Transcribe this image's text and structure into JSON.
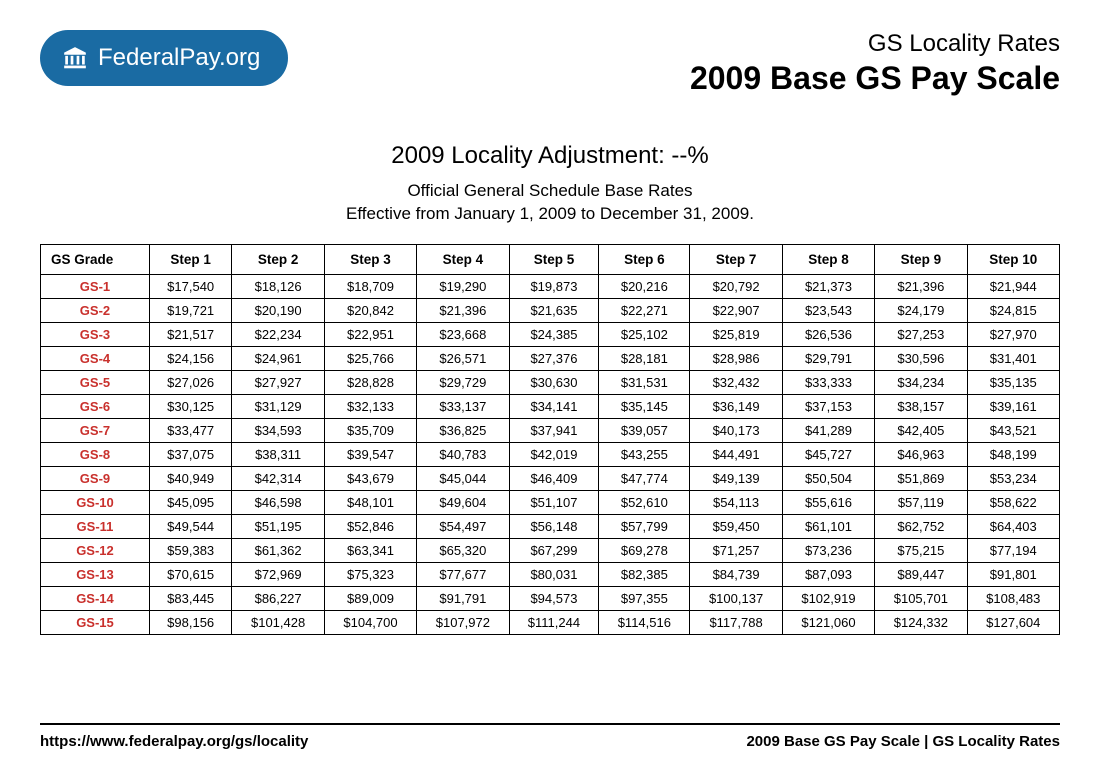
{
  "logo": {
    "text_bold": "Federal",
    "text_light": "Pay.org"
  },
  "header": {
    "line1": "GS Locality Rates",
    "line2": "2009 Base GS Pay Scale"
  },
  "subtitle": {
    "adjustment": "2009 Locality Adjustment: --%",
    "desc_line1": "Official General Schedule Base Rates",
    "desc_line2": "Effective from January 1, 2009 to December 31, 2009."
  },
  "table": {
    "columns": [
      "GS Grade",
      "Step 1",
      "Step 2",
      "Step 3",
      "Step 4",
      "Step 5",
      "Step 6",
      "Step 7",
      "Step 8",
      "Step 9",
      "Step 10"
    ],
    "rows": [
      [
        "GS-1",
        "$17,540",
        "$18,126",
        "$18,709",
        "$19,290",
        "$19,873",
        "$20,216",
        "$20,792",
        "$21,373",
        "$21,396",
        "$21,944"
      ],
      [
        "GS-2",
        "$19,721",
        "$20,190",
        "$20,842",
        "$21,396",
        "$21,635",
        "$22,271",
        "$22,907",
        "$23,543",
        "$24,179",
        "$24,815"
      ],
      [
        "GS-3",
        "$21,517",
        "$22,234",
        "$22,951",
        "$23,668",
        "$24,385",
        "$25,102",
        "$25,819",
        "$26,536",
        "$27,253",
        "$27,970"
      ],
      [
        "GS-4",
        "$24,156",
        "$24,961",
        "$25,766",
        "$26,571",
        "$27,376",
        "$28,181",
        "$28,986",
        "$29,791",
        "$30,596",
        "$31,401"
      ],
      [
        "GS-5",
        "$27,026",
        "$27,927",
        "$28,828",
        "$29,729",
        "$30,630",
        "$31,531",
        "$32,432",
        "$33,333",
        "$34,234",
        "$35,135"
      ],
      [
        "GS-6",
        "$30,125",
        "$31,129",
        "$32,133",
        "$33,137",
        "$34,141",
        "$35,145",
        "$36,149",
        "$37,153",
        "$38,157",
        "$39,161"
      ],
      [
        "GS-7",
        "$33,477",
        "$34,593",
        "$35,709",
        "$36,825",
        "$37,941",
        "$39,057",
        "$40,173",
        "$41,289",
        "$42,405",
        "$43,521"
      ],
      [
        "GS-8",
        "$37,075",
        "$38,311",
        "$39,547",
        "$40,783",
        "$42,019",
        "$43,255",
        "$44,491",
        "$45,727",
        "$46,963",
        "$48,199"
      ],
      [
        "GS-9",
        "$40,949",
        "$42,314",
        "$43,679",
        "$45,044",
        "$46,409",
        "$47,774",
        "$49,139",
        "$50,504",
        "$51,869",
        "$53,234"
      ],
      [
        "GS-10",
        "$45,095",
        "$46,598",
        "$48,101",
        "$49,604",
        "$51,107",
        "$52,610",
        "$54,113",
        "$55,616",
        "$57,119",
        "$58,622"
      ],
      [
        "GS-11",
        "$49,544",
        "$51,195",
        "$52,846",
        "$54,497",
        "$56,148",
        "$57,799",
        "$59,450",
        "$61,101",
        "$62,752",
        "$64,403"
      ],
      [
        "GS-12",
        "$59,383",
        "$61,362",
        "$63,341",
        "$65,320",
        "$67,299",
        "$69,278",
        "$71,257",
        "$73,236",
        "$75,215",
        "$77,194"
      ],
      [
        "GS-13",
        "$70,615",
        "$72,969",
        "$75,323",
        "$77,677",
        "$80,031",
        "$82,385",
        "$84,739",
        "$87,093",
        "$89,447",
        "$91,801"
      ],
      [
        "GS-14",
        "$83,445",
        "$86,227",
        "$89,009",
        "$91,791",
        "$94,573",
        "$97,355",
        "$100,137",
        "$102,919",
        "$105,701",
        "$108,483"
      ],
      [
        "GS-15",
        "$98,156",
        "$101,428",
        "$104,700",
        "$107,972",
        "$111,244",
        "$114,516",
        "$117,788",
        "$121,060",
        "$124,332",
        "$127,604"
      ]
    ],
    "grade_color": "#c9302c"
  },
  "footer": {
    "left": "https://www.federalpay.org/gs/locality",
    "right": "2009 Base GS Pay Scale | GS Locality Rates"
  }
}
